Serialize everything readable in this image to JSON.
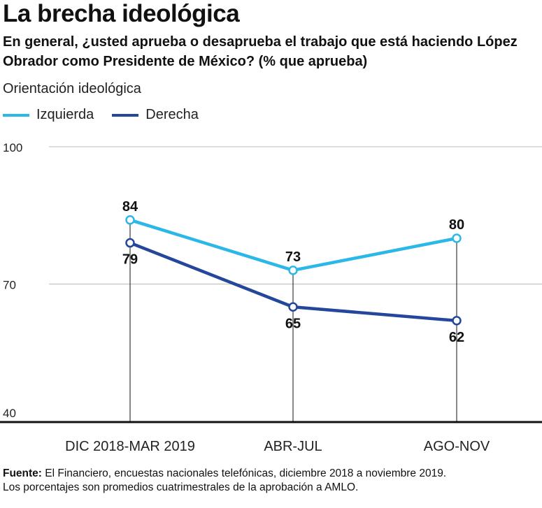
{
  "title": "La brecha ideológica",
  "subtitle": "En general, ¿usted aprueba o desaprueba el trabajo que está haciendo López Obrador como Presidente de México? (% que aprueba)",
  "legend_title": "Orientación ideológica",
  "colors": {
    "izquierda": "#2bb8e9",
    "derecha": "#24479b"
  },
  "chart_data": {
    "type": "line",
    "categories": [
      "DIC 2018-MAR 2019",
      "ABR-JUL",
      "AGO-NOV"
    ],
    "series": [
      {
        "name": "Izquierda",
        "values": [
          84,
          73,
          80
        ]
      },
      {
        "name": "Derecha",
        "values": [
          79,
          65,
          62
        ]
      }
    ],
    "ylim": [
      40,
      100
    ],
    "yticks": [
      "40",
      "70",
      "100"
    ],
    "grid": true,
    "legend": "top-left"
  },
  "footer": {
    "source_label": "Fuente:",
    "source_text": " El Financiero, encuestas nacionales telefónicas, diciembre 2018 a noviembre 2019.",
    "note": "Los porcentajes son promedios cuatrimestrales de la aprobación a AMLO."
  }
}
